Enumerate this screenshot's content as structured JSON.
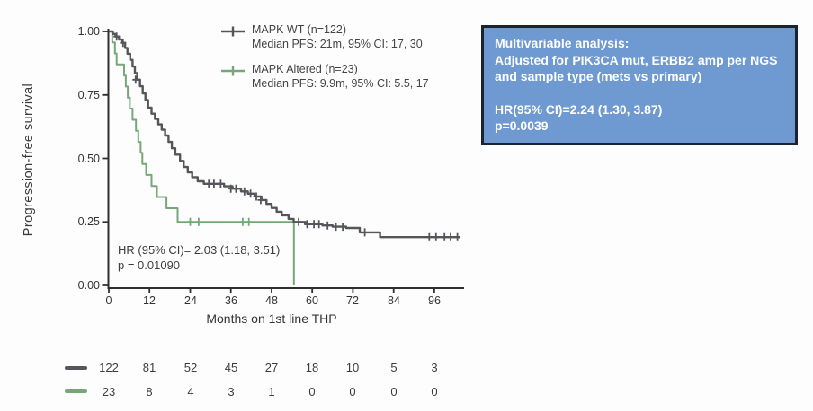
{
  "chart_data": {
    "type": "line",
    "subtype": "kaplan-meier-step",
    "title": "",
    "xlabel": "Months on 1st line THP",
    "ylabel": "Progression-free survival",
    "xlim": [
      0,
      104
    ],
    "ylim": [
      0,
      1
    ],
    "x_ticks": [
      0,
      12,
      24,
      36,
      48,
      60,
      72,
      84,
      96
    ],
    "y_tick_values": [
      1.0,
      0.75,
      0.5,
      0.25,
      0.0
    ],
    "y_tick_labels": [
      "1.00",
      "0.75",
      "0.50",
      "0.25",
      "0.00"
    ],
    "grid": "off",
    "legend_position": "top-inside-right",
    "series": [
      {
        "name": "MAPK WT (n=122)",
        "median_label": "Median PFS: 21m, 95% CI: 17, 30",
        "color": "#55565a",
        "steps": [
          [
            0,
            1.0
          ],
          [
            1.2,
            0.99
          ],
          [
            2,
            0.98
          ],
          [
            3,
            0.968
          ],
          [
            4,
            0.955
          ],
          [
            4.8,
            0.935
          ],
          [
            5.5,
            0.912
          ],
          [
            6.3,
            0.888
          ],
          [
            7,
            0.862
          ],
          [
            7.7,
            0.836
          ],
          [
            8.4,
            0.81
          ],
          [
            9.2,
            0.784
          ],
          [
            10,
            0.756
          ],
          [
            10.8,
            0.73
          ],
          [
            11.6,
            0.7
          ],
          [
            12.6,
            0.676
          ],
          [
            13.6,
            0.655
          ],
          [
            14.6,
            0.634
          ],
          [
            15.6,
            0.613
          ],
          [
            16.6,
            0.59
          ],
          [
            17.6,
            0.565
          ],
          [
            18.6,
            0.54
          ],
          [
            19.6,
            0.515
          ],
          [
            21,
            0.49
          ],
          [
            22.1,
            0.466
          ],
          [
            23.3,
            0.445
          ],
          [
            24.6,
            0.426
          ],
          [
            26.2,
            0.41
          ],
          [
            28,
            0.4
          ],
          [
            34,
            0.39
          ],
          [
            36.5,
            0.381
          ],
          [
            39,
            0.37
          ],
          [
            41,
            0.361
          ],
          [
            43,
            0.35
          ],
          [
            45,
            0.336
          ],
          [
            46.5,
            0.321
          ],
          [
            48,
            0.305
          ],
          [
            49.5,
            0.29
          ],
          [
            51,
            0.276
          ],
          [
            53,
            0.262
          ],
          [
            54.5,
            0.25
          ],
          [
            58,
            0.241
          ],
          [
            63,
            0.236
          ],
          [
            66,
            0.231
          ],
          [
            70,
            0.226
          ],
          [
            74,
            0.209
          ],
          [
            80,
            0.19
          ],
          [
            103.5,
            0.19
          ]
        ],
        "censors": [
          [
            2.3,
            0.98
          ],
          [
            4.2,
            0.955
          ],
          [
            7.9,
            0.81
          ],
          [
            29.5,
            0.4
          ],
          [
            31,
            0.4
          ],
          [
            33,
            0.4
          ],
          [
            36,
            0.381
          ],
          [
            37.5,
            0.381
          ],
          [
            40,
            0.37
          ],
          [
            41.8,
            0.361
          ],
          [
            43.5,
            0.35
          ],
          [
            44.8,
            0.336
          ],
          [
            56,
            0.25
          ],
          [
            58.5,
            0.241
          ],
          [
            60.5,
            0.241
          ],
          [
            62,
            0.241
          ],
          [
            64.5,
            0.236
          ],
          [
            67,
            0.231
          ],
          [
            69,
            0.231
          ],
          [
            75.5,
            0.209
          ],
          [
            94.5,
            0.19
          ],
          [
            96.5,
            0.19
          ],
          [
            99,
            0.19
          ],
          [
            100.8,
            0.19
          ],
          [
            102.8,
            0.19
          ]
        ]
      },
      {
        "name": "MAPK Altered (n=23)",
        "median_label": "Median PFS: 9.9m, 95% CI: 5.5, 17",
        "color": "#76a877",
        "steps": [
          [
            0,
            1.0
          ],
          [
            1,
            0.957
          ],
          [
            1.8,
            0.913
          ],
          [
            2.3,
            0.87
          ],
          [
            4.5,
            0.826
          ],
          [
            5,
            0.783
          ],
          [
            5.6,
            0.739
          ],
          [
            6.2,
            0.696
          ],
          [
            7,
            0.652
          ],
          [
            8,
            0.609
          ],
          [
            8.7,
            0.565
          ],
          [
            9.4,
            0.522
          ],
          [
            9.9,
            0.478
          ],
          [
            11,
            0.435
          ],
          [
            12.6,
            0.391
          ],
          [
            14.2,
            0.348
          ],
          [
            17,
            0.304
          ],
          [
            20.3,
            0.25
          ],
          [
            54.6,
            0.25
          ],
          [
            54.6,
            0
          ]
        ],
        "censors": [
          [
            24,
            0.25
          ],
          [
            26.5,
            0.25
          ],
          [
            39.5,
            0.25
          ],
          [
            41.3,
            0.25
          ]
        ]
      }
    ],
    "annotation": {
      "line1": "HR (95% CI)= 2.03 (1.18, 3.51)",
      "line2": "p = 0.01090"
    },
    "risk_table": {
      "rows": [
        {
          "color": "#55565a",
          "counts": [
            122,
            81,
            52,
            45,
            27,
            18,
            10,
            5,
            3
          ]
        },
        {
          "color": "#76a877",
          "counts": [
            23,
            8,
            4,
            3,
            1,
            0,
            0,
            0,
            0
          ]
        }
      ]
    }
  },
  "info_box": {
    "bg": "#6E99D1",
    "border": "#1b2330",
    "line1": "Multivariable analysis:",
    "line2": "Adjusted for PIK3CA mut, ERBB2 amp per NGS",
    "line3": "and sample type (mets vs primary)",
    "line4": "HR(95% CI)=2.24 (1.30, 3.87)",
    "line5": "p=0.0039"
  }
}
